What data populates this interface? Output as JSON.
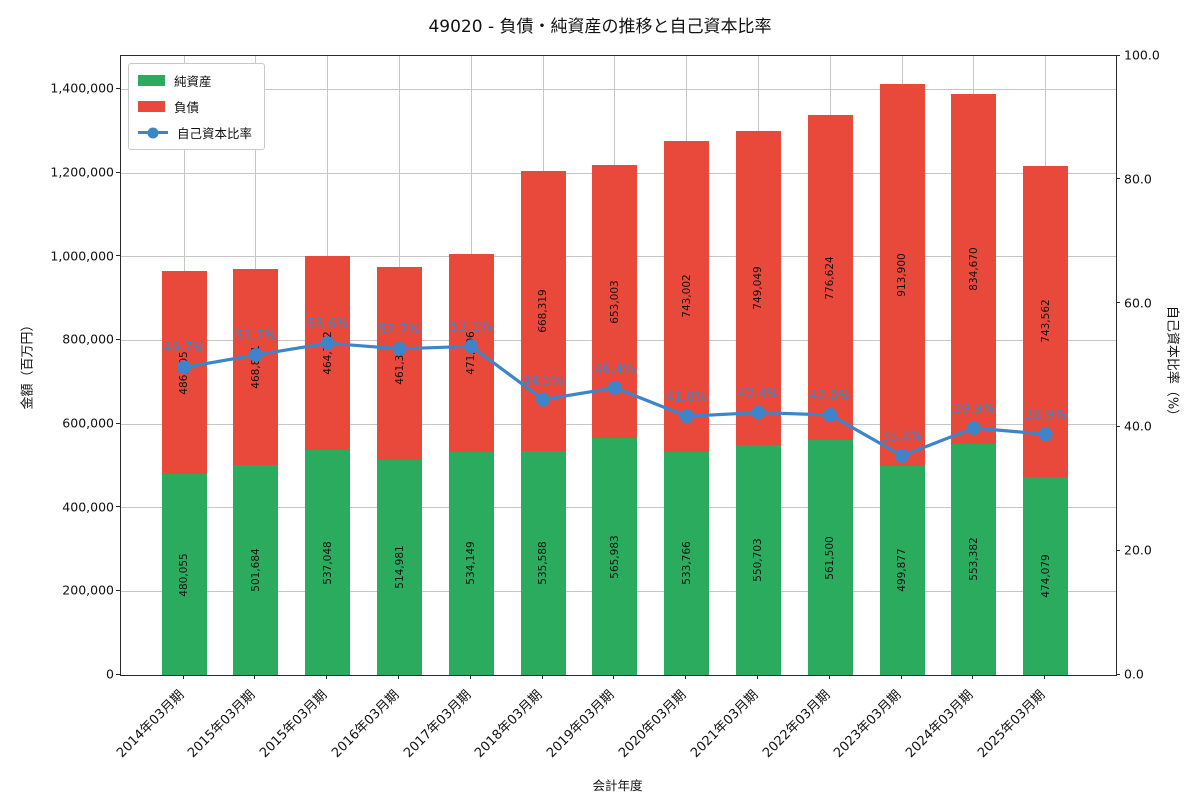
{
  "title": "49020 - 負債・純資産の推移と自己資本比率",
  "colors": {
    "net_assets": "#2bab5e",
    "liabilities": "#e8493b",
    "equity_line": "#3d85c8",
    "grid": "#c6c6c6",
    "axis": "#2a2a2a",
    "text": "#111111"
  },
  "chart_data": {
    "type": "bar",
    "subtype": "stacked-bar-with-line",
    "title": "49020 - 負債・純資産の推移と自己資本比率",
    "xlabel": "会計年度",
    "ylabel_left": "金額（百万円）",
    "ylabel_right": "自己資本比率（%）",
    "categories": [
      "2014年03月期",
      "2015年03月期",
      "2015年03月期",
      "2016年03月期",
      "2017年03月期",
      "2018年03月期",
      "2019年03月期",
      "2020年03月期",
      "2021年03月期",
      "2022年03月期",
      "2023年03月期",
      "2024年03月期",
      "2025年03月期"
    ],
    "series": [
      {
        "name": "純資産",
        "type": "bar",
        "stack": 0,
        "values": [
          480055,
          501684,
          537048,
          514981,
          534149,
          535588,
          565983,
          533766,
          550703,
          561500,
          499877,
          553382,
          474079
        ]
      },
      {
        "name": "負債",
        "type": "bar",
        "stack": 1,
        "values": [
          486105,
          468801,
          464702,
          461300,
          471506,
          668319,
          653003,
          743002,
          749049,
          776624,
          913900,
          834670,
          743562
        ]
      },
      {
        "name": "自己資本比率",
        "type": "line",
        "axis": "right",
        "unit": "%",
        "values": [
          49.7,
          51.7,
          53.6,
          52.7,
          53.1,
          44.5,
          46.4,
          41.8,
          42.4,
          42.0,
          35.4,
          39.9,
          38.9
        ]
      }
    ],
    "ylim_left": [
      0,
      1480000
    ],
    "ylim_right": [
      0,
      100
    ],
    "yticks_left": [
      0,
      200000,
      400000,
      600000,
      800000,
      1000000,
      1200000,
      1400000
    ],
    "ytick_labels_left": [
      "0",
      "200,000",
      "400,000",
      "600,000",
      "800,000",
      "1,000,000",
      "1,200,000",
      "1,400,000"
    ],
    "yticks_right": [
      0,
      20,
      40,
      60,
      80,
      100
    ],
    "ytick_labels_right": [
      "0.0",
      "20.0",
      "40.0",
      "60.0",
      "80.0",
      "100.0"
    ],
    "grid": true,
    "legend_position": "upper-left"
  }
}
